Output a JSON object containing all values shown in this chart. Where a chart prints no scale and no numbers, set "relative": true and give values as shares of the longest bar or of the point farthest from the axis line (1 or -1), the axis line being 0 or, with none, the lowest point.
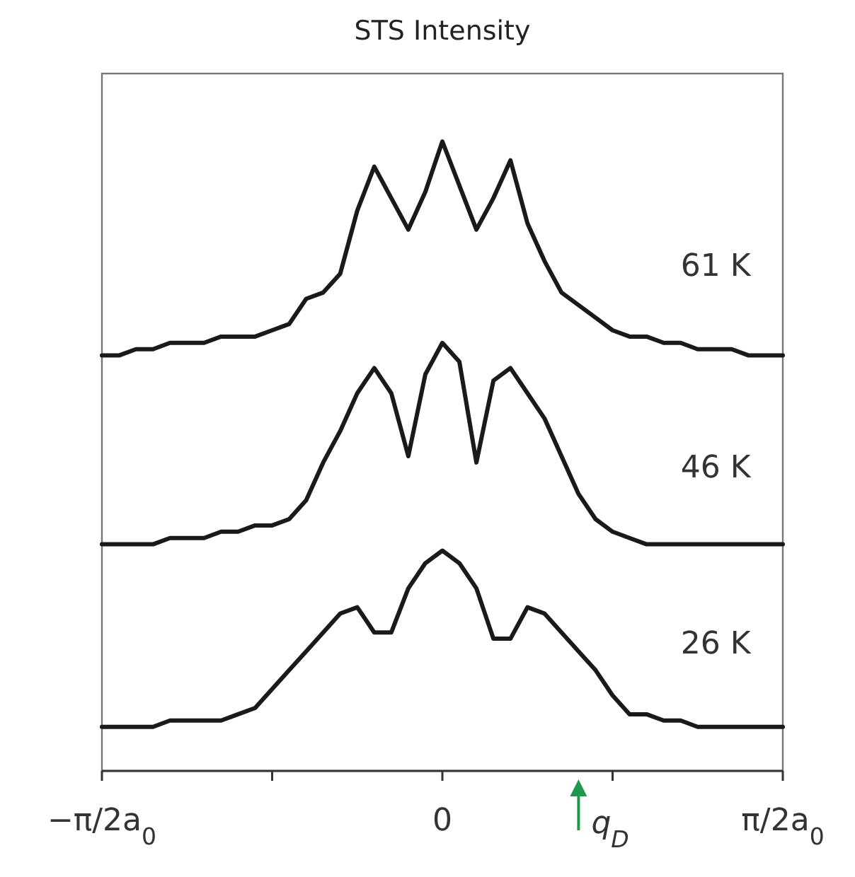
{
  "chart_data": {
    "type": "line",
    "title": "STS Intensity",
    "relative": true,
    "categories": [
      "−π/2a$_{0}$",
      null,
      null,
      null,
      null,
      null,
      null,
      null,
      null,
      null,
      null,
      null,
      null,
      null,
      null,
      null,
      null,
      null,
      null,
      null,
      "0",
      null,
      null,
      null,
      null,
      null,
      null,
      null,
      null,
      null,
      null,
      null,
      null,
      null,
      null,
      null,
      null,
      null,
      null,
      null,
      "π/2a$_{0}$"
    ],
    "annotations": [
      "q$_{D}$"
    ],
    "grid": false,
    "marker": "none",
    "line_style": "solid",
    "series": [
      {
        "name": "61 K",
        "color": "#1a1a1a",
        "values": [
          0.66,
          0.66,
          0.67,
          0.67,
          0.68,
          0.68,
          0.68,
          0.69,
          0.69,
          0.69,
          0.7,
          0.71,
          0.75,
          0.76,
          0.79,
          0.89,
          0.96,
          0.91,
          0.86,
          0.92,
          1,
          0.93,
          0.86,
          0.91,
          0.97,
          0.87,
          0.81,
          0.76,
          0.74,
          0.72,
          0.7,
          0.69,
          0.69,
          0.68,
          0.68,
          0.67,
          0.67,
          0.67,
          0.66,
          0.66,
          0.66
        ]
      },
      {
        "name": "46 K",
        "color": "#1a1a1a",
        "values": [
          0.36,
          0.36,
          0.36,
          0.36,
          0.37,
          0.37,
          0.37,
          0.38,
          0.38,
          0.39,
          0.39,
          0.4,
          0.43,
          0.49,
          0.54,
          0.6,
          0.64,
          0.6,
          0.5,
          0.63,
          0.68,
          0.65,
          0.49,
          0.62,
          0.64,
          0.6,
          0.56,
          0.5,
          0.44,
          0.4,
          0.38,
          0.37,
          0.36,
          0.36,
          0.36,
          0.36,
          0.36,
          0.36,
          0.36,
          0.36,
          0.36
        ]
      },
      {
        "name": "26 K",
        "color": "#1a1a1a",
        "values": [
          0.07,
          0.07,
          0.07,
          0.07,
          0.08,
          0.08,
          0.08,
          0.08,
          0.09,
          0.1,
          0.13,
          0.16,
          0.19,
          0.22,
          0.25,
          0.26,
          0.22,
          0.22,
          0.29,
          0.33,
          0.35,
          0.33,
          0.29,
          0.21,
          0.21,
          0.26,
          0.25,
          0.22,
          0.19,
          0.16,
          0.12,
          0.09,
          0.09,
          0.08,
          0.08,
          0.07,
          0.07,
          0.07,
          0.07,
          0.07,
          0.07
        ]
      }
    ]
  }
}
